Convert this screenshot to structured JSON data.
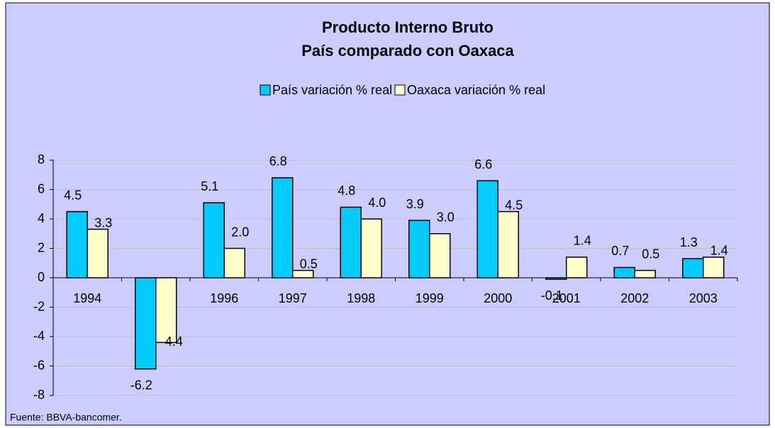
{
  "chart_data": {
    "type": "bar",
    "title": "Producto Interno Bruto",
    "subtitle": "País comparado con Oaxaca",
    "source": "Fuente: BBVA-bancomer.",
    "categories": [
      "1994",
      "1995",
      "1996",
      "1997",
      "1998",
      "1999",
      "2000",
      "2001",
      "2002",
      "2003"
    ],
    "series": [
      {
        "name": "País variación % real",
        "color": "#00ccff",
        "values": [
          4.5,
          -6.2,
          5.1,
          6.8,
          4.8,
          3.9,
          6.6,
          -0.1,
          0.7,
          1.3
        ],
        "value_labels": [
          "4.5",
          "-6.2",
          "5.1",
          "6.8",
          "4.8",
          "3.9",
          "6.6",
          "-0.1",
          "0.7",
          "1.3"
        ]
      },
      {
        "name": "Oaxaca variación % real",
        "color": "#ffffcc",
        "values": [
          3.3,
          -4.4,
          2.0,
          0.5,
          4.0,
          3.0,
          4.5,
          1.4,
          0.5,
          1.4
        ],
        "value_labels": [
          "3.3",
          "-4.4",
          "2.0",
          "0.5",
          "4.0",
          "3.0",
          "4.5",
          "1.4",
          "0.5",
          "1.4"
        ]
      }
    ],
    "ylim": [
      -8,
      8
    ],
    "yticks": [
      -8,
      -6,
      -4,
      -2,
      0,
      2,
      4,
      6,
      8
    ],
    "grid": true,
    "legend": "top"
  }
}
